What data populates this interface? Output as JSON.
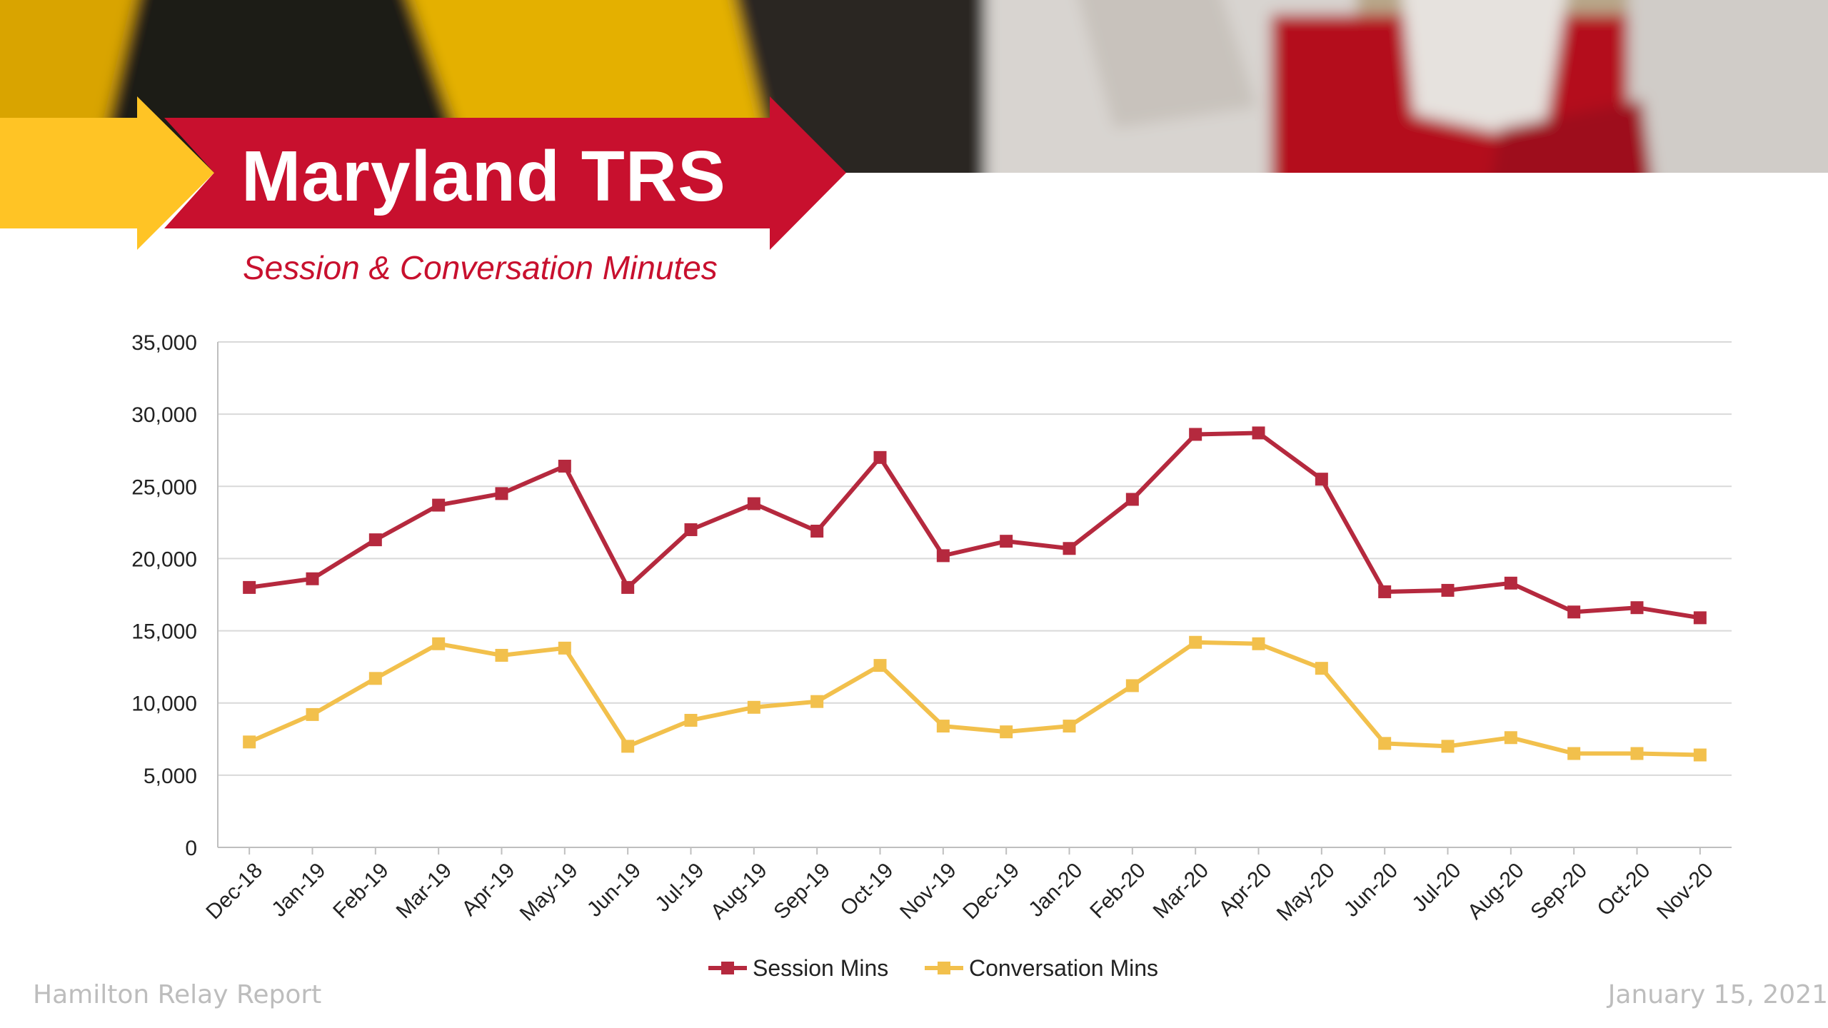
{
  "slide": {
    "title": "Maryland TRS",
    "subtitle": "Session & Conversation Minutes",
    "footer_left": "Hamilton Relay Report",
    "footer_right": "January 15, 2021"
  },
  "colors": {
    "crimson": "#c8102e",
    "gold": "#ffc425",
    "session_line": "#b5293e",
    "conversation_line": "#f2c04c",
    "grid": "#d9d9d9"
  },
  "chart_data": {
    "type": "line",
    "title": "",
    "xlabel": "",
    "ylabel": "",
    "categories": [
      "Dec-18",
      "Jan-19",
      "Feb-19",
      "Mar-19",
      "Apr-19",
      "May-19",
      "Jun-19",
      "Jul-19",
      "Aug-19",
      "Sep-19",
      "Oct-19",
      "Nov-19",
      "Dec-19",
      "Jan-20",
      "Feb-20",
      "Mar-20",
      "Apr-20",
      "May-20",
      "Jun-20",
      "Jul-20",
      "Aug-20",
      "Sep-20",
      "Oct-20",
      "Nov-20"
    ],
    "series": [
      {
        "name": "Session Mins",
        "color": "#b5293e",
        "values": [
          18000,
          18600,
          21300,
          23700,
          24500,
          26400,
          18000,
          22000,
          23800,
          21900,
          27000,
          20200,
          21200,
          20700,
          24100,
          28600,
          28700,
          25500,
          17700,
          17800,
          18300,
          16300,
          16600,
          15900
        ]
      },
      {
        "name": "Conversation Mins",
        "color": "#f2c04c",
        "values": [
          7300,
          9200,
          11700,
          14100,
          13300,
          13800,
          7000,
          8800,
          9700,
          10100,
          12600,
          8400,
          8000,
          8400,
          11200,
          14200,
          14100,
          12400,
          7200,
          7000,
          7600,
          6500,
          6500,
          6400
        ]
      }
    ],
    "ylim": [
      0,
      35000
    ],
    "yticks": [
      0,
      5000,
      10000,
      15000,
      20000,
      25000,
      30000,
      35000
    ],
    "ytick_labels": [
      "0",
      "5,000",
      "10,000",
      "15,000",
      "20,000",
      "25,000",
      "30,000",
      "35,000"
    ],
    "grid": true,
    "legend": "bottom"
  }
}
